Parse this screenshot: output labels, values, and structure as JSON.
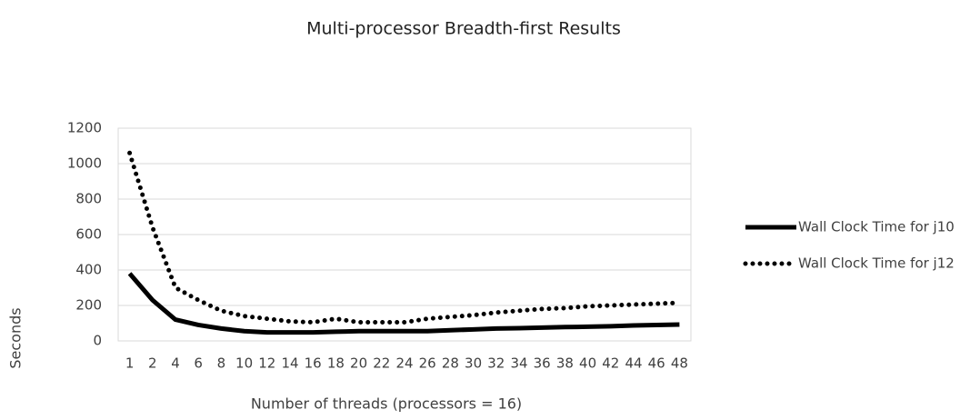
{
  "chart_data": {
    "type": "line",
    "title": "Multi-processor Breadth-first Results",
    "xlabel": "Number of threads (processors = 16)",
    "ylabel": "Seconds",
    "categories": [
      "1",
      "2",
      "4",
      "6",
      "8",
      "10",
      "12",
      "14",
      "16",
      "18",
      "20",
      "22",
      "24",
      "26",
      "28",
      "30",
      "32",
      "34",
      "36",
      "38",
      "40",
      "42",
      "44",
      "46",
      "48"
    ],
    "series": [
      {
        "name": "Wall Clock Time for j10",
        "color": "#000000",
        "style": "solid",
        "values": [
          380,
          230,
          120,
          90,
          70,
          55,
          48,
          48,
          48,
          52,
          55,
          55,
          55,
          55,
          60,
          65,
          70,
          72,
          75,
          78,
          80,
          83,
          87,
          90,
          92
        ]
      },
      {
        "name": "Wall Clock Time for j12",
        "color": "#000000",
        "style": "dotted",
        "values": [
          1060,
          640,
          300,
          230,
          170,
          140,
          125,
          110,
          105,
          125,
          105,
          105,
          105,
          125,
          135,
          145,
          160,
          170,
          180,
          185,
          195,
          200,
          205,
          210,
          215
        ]
      }
    ],
    "ylim": [
      0,
      1200
    ],
    "yticks": [
      0,
      200,
      400,
      600,
      800,
      1000,
      1200
    ],
    "grid": true,
    "legend": "right"
  }
}
